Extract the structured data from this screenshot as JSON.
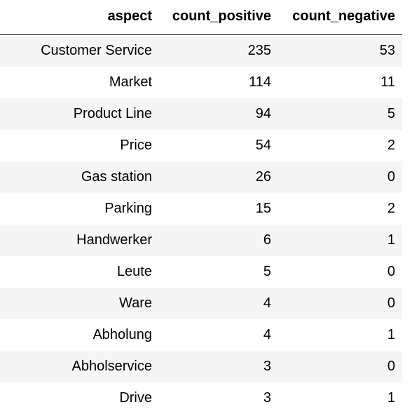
{
  "table": {
    "columns": [
      "aspect",
      "count_positive",
      "count_negative"
    ],
    "rows": [
      {
        "aspect": "Customer Service",
        "count_positive": "235",
        "count_negative": "53"
      },
      {
        "aspect": "Market",
        "count_positive": "114",
        "count_negative": "11"
      },
      {
        "aspect": "Product Line",
        "count_positive": "94",
        "count_negative": "5"
      },
      {
        "aspect": "Price",
        "count_positive": "54",
        "count_negative": "2"
      },
      {
        "aspect": "Gas station",
        "count_positive": "26",
        "count_negative": "0"
      },
      {
        "aspect": "Parking",
        "count_positive": "15",
        "count_negative": "2"
      },
      {
        "aspect": "Handwerker",
        "count_positive": "6",
        "count_negative": "1"
      },
      {
        "aspect": "Leute",
        "count_positive": "5",
        "count_negative": "0"
      },
      {
        "aspect": "Ware",
        "count_positive": "4",
        "count_negative": "0"
      },
      {
        "aspect": "Abholung",
        "count_positive": "4",
        "count_negative": "1"
      },
      {
        "aspect": "Abholservice",
        "count_positive": "3",
        "count_negative": "0"
      },
      {
        "aspect": "Drive",
        "count_positive": "3",
        "count_negative": "1"
      }
    ]
  },
  "colors": {
    "stripe": "#f5f5f5",
    "header_rule": "#222222",
    "text": "#000000"
  }
}
